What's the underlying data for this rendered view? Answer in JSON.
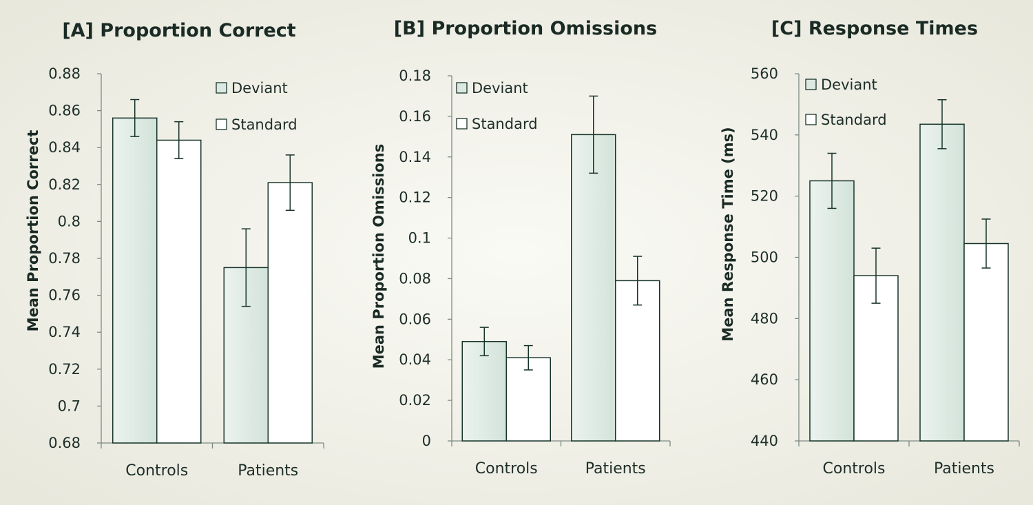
{
  "chart_data": [
    {
      "type": "bar",
      "title": "[A] Proportion Correct",
      "ylabel": "Mean Proportion Correct",
      "xlabel": "",
      "ylim": [
        0.68,
        0.88
      ],
      "yticks": [
        "0.68",
        "0.7",
        "0.72",
        "0.74",
        "0.76",
        "0.78",
        "0.8",
        "0.82",
        "0.84",
        "0.86",
        "0.88"
      ],
      "categories": [
        "Controls",
        "Patients"
      ],
      "legend_position": "top-right",
      "series": [
        {
          "name": "Deviant",
          "color": "#dce9e3",
          "values": [
            0.856,
            0.775
          ],
          "errors": [
            0.01,
            0.021
          ]
        },
        {
          "name": "Standard",
          "color": "#ffffff",
          "values": [
            0.844,
            0.821
          ],
          "errors": [
            0.01,
            0.015
          ]
        }
      ]
    },
    {
      "type": "bar",
      "title": "[B] Proportion Omissions",
      "ylabel": "Mean Proportion Omissions",
      "xlabel": "",
      "ylim": [
        0,
        0.18
      ],
      "yticks": [
        "0",
        "0.02",
        "0.04",
        "0.06",
        "0.08",
        "0.1",
        "0.12",
        "0.14",
        "0.16",
        "0.18"
      ],
      "categories": [
        "Controls",
        "Patients"
      ],
      "legend_position": "top-left",
      "series": [
        {
          "name": "Deviant",
          "color": "#dce9e3",
          "values": [
            0.049,
            0.151
          ],
          "errors": [
            0.007,
            0.019
          ]
        },
        {
          "name": "Standard",
          "color": "#ffffff",
          "values": [
            0.041,
            0.079
          ],
          "errors": [
            0.006,
            0.012
          ]
        }
      ]
    },
    {
      "type": "bar",
      "title": "[C] Response Times",
      "ylabel": "Mean Response Time (ms)",
      "xlabel": "",
      "ylim": [
        440,
        560
      ],
      "yticks": [
        "440",
        "460",
        "480",
        "500",
        "520",
        "540",
        "560"
      ],
      "categories": [
        "Controls",
        "Patients"
      ],
      "legend_position": "top-left",
      "series": [
        {
          "name": "Deviant",
          "color": "#dce9e3",
          "values": [
            525,
            543.5
          ],
          "errors": [
            9,
            8
          ]
        },
        {
          "name": "Standard",
          "color": "#ffffff",
          "values": [
            494,
            504.5
          ],
          "errors": [
            9,
            8
          ]
        }
      ]
    }
  ]
}
